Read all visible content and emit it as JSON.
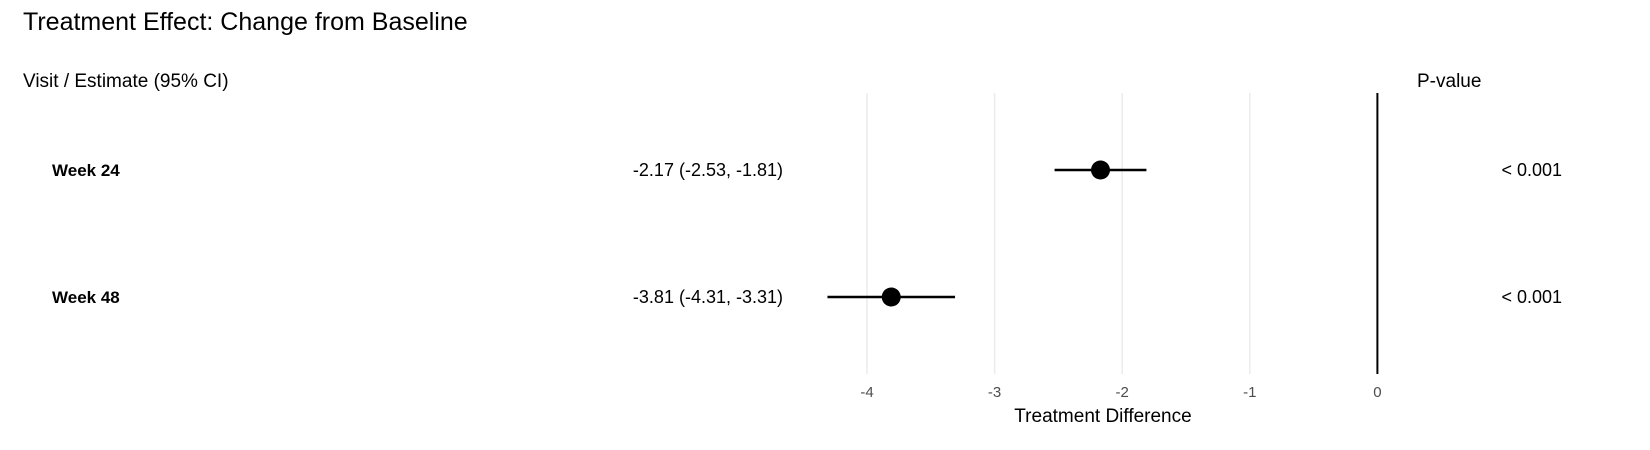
{
  "chart_data": {
    "type": "forest",
    "title": "Treatment Effect: Change from Baseline",
    "left_header": "Visit / Estimate (95% CI)",
    "right_header": "P-value",
    "xlabel": "Treatment Difference",
    "xticks": [
      -4,
      -3,
      -2,
      -1,
      0
    ],
    "xtick_labels": [
      "-4",
      "-3",
      "-2",
      "-1",
      "0"
    ],
    "reference_line": 0,
    "grid": "vertical major",
    "rows": [
      {
        "label": "Week 24",
        "estimate": -2.17,
        "lower": -2.53,
        "upper": -1.81,
        "estimate_text": "-2.17 (-2.53, -1.81)",
        "p_value": "< 0.001"
      },
      {
        "label": "Week 48",
        "estimate": -3.81,
        "lower": -4.31,
        "upper": -3.31,
        "estimate_text": "-3.81 (-4.31, -3.31)",
        "p_value": "< 0.001"
      }
    ],
    "colors": {
      "point": "#000000",
      "grid": "#ebebeb",
      "tick_text": "#4d4d4d"
    }
  }
}
